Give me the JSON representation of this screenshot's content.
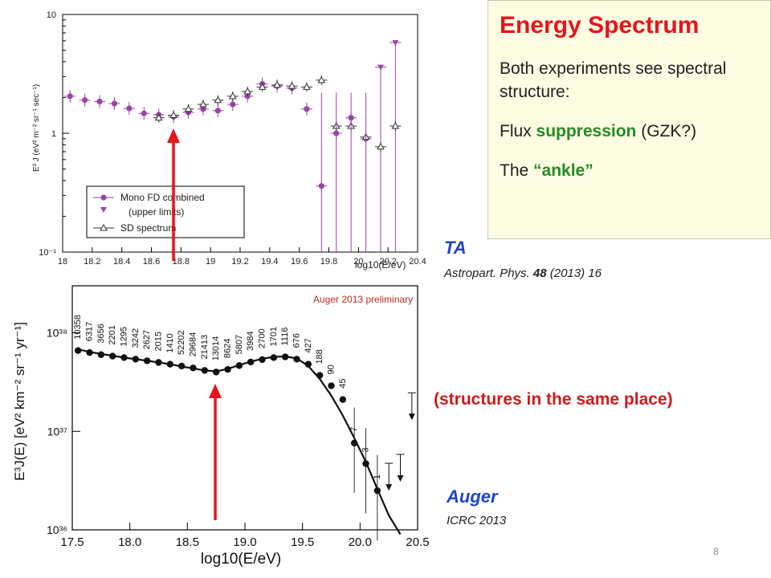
{
  "slide": {
    "box": {
      "title": "Energy Spectrum",
      "line1": "Both experiments see spectral structure:",
      "line2_pre": "Flux ",
      "line2_em": "suppression",
      "line2_post": " (GZK?)",
      "line3_pre": "The ",
      "line3_em": "“ankle”"
    },
    "ta_label": "TA",
    "ta_ref_pre": "Astropart. Phys. ",
    "ta_ref_vol": "48",
    "ta_ref_post": " (2013) 16",
    "same_place": "(structures in the same place)",
    "auger_label": "Auger",
    "auger_ref": "ICRC 2013",
    "page_number": "8",
    "accent_red": "#e8141c",
    "accent_blue": "#2044c4",
    "accent_green": "#238b23"
  },
  "chart_data": [
    {
      "type": "scatter",
      "title": "",
      "xlabel": "log10(E/eV)",
      "ylabel": "E³ J (eV² m⁻² sr⁻¹ sec⁻¹)",
      "xlim": [
        18,
        20.4
      ],
      "ylim": [
        0.1,
        10
      ],
      "yscale": "log",
      "x_ticks": [
        "18",
        "18.2",
        "18.4",
        "18.6",
        "18.8",
        "19",
        "19.2",
        "19.4",
        "19.6",
        "19.8",
        "20",
        "20.2",
        "20.4"
      ],
      "y_ticks": [
        "10⁻¹",
        "1",
        "10"
      ],
      "legend_position": "bottom-left",
      "legend": [
        "Mono FD combined",
        "(upper limits)",
        "SD spectrum"
      ],
      "series": [
        {
          "name": "Mono FD combined",
          "marker": "circle",
          "color": "#9a44a6",
          "x": [
            18.05,
            18.15,
            18.25,
            18.35,
            18.45,
            18.55,
            18.65,
            18.75,
            18.85,
            18.95,
            19.05,
            19.15,
            19.25,
            19.35,
            19.45,
            19.55,
            19.65,
            19.75,
            19.85,
            19.95,
            20.05,
            20.15
          ],
          "y": [
            2.05,
            1.9,
            1.85,
            1.78,
            1.62,
            1.47,
            1.43,
            1.38,
            1.5,
            1.6,
            1.55,
            1.75,
            2.05,
            2.6,
            2.5,
            2.4,
            1.6,
            0.36,
            1.0,
            1.35,
            0.9,
            0.0
          ]
        },
        {
          "name": "(upper limits)",
          "marker": "triangle-down",
          "color": "#9a44a6",
          "x": [
            20.15,
            20.25
          ],
          "y": [
            3.6,
            5.8
          ]
        },
        {
          "name": "SD spectrum",
          "marker": "triangle-open",
          "color": "#303030",
          "x": [
            18.65,
            18.75,
            18.85,
            18.95,
            19.05,
            19.15,
            19.25,
            19.35,
            19.45,
            19.55,
            19.65,
            19.75,
            19.85,
            19.95,
            20.05,
            20.15,
            20.25
          ],
          "y": [
            1.35,
            1.42,
            1.6,
            1.75,
            1.9,
            2.05,
            2.25,
            2.45,
            2.55,
            2.5,
            2.45,
            2.8,
            1.15,
            1.15,
            0.93,
            0.77,
            1.15
          ]
        }
      ]
    },
    {
      "type": "scatter",
      "title": "Auger 2013 preliminary",
      "xlabel": "log10(E/eV)",
      "ylabel": "E³J(E) [eV² km⁻² sr⁻¹ yr⁻¹]",
      "xlim": [
        17.5,
        20.5
      ],
      "ylim": [
        1e+36,
        3e+38
      ],
      "yscale": "log",
      "x_ticks": [
        "17.5",
        "18.0",
        "18.5",
        "19.0",
        "19.5",
        "20.0",
        "20.5"
      ],
      "y_ticks": [
        "10³⁶",
        "10³⁷",
        "10³⁸"
      ],
      "points": {
        "x": [
          17.55,
          17.65,
          17.75,
          17.85,
          17.95,
          18.05,
          18.15,
          18.25,
          18.35,
          18.45,
          18.55,
          18.65,
          18.75,
          18.85,
          18.95,
          19.05,
          19.15,
          19.25,
          19.35,
          19.45,
          19.55,
          19.65,
          19.75,
          19.85,
          19.95,
          20.05,
          20.15
        ],
        "y": [
          6.6e+37,
          6.3e+37,
          6e+37,
          5.8e+37,
          5.6e+37,
          5.4e+37,
          5.2e+37,
          5e+37,
          4.8e+37,
          4.6e+37,
          4.4e+37,
          4.15e+37,
          4e+37,
          4.25e+37,
          4.65e+37,
          5.05e+37,
          5.35e+37,
          5.6e+37,
          5.7e+37,
          5.4e+37,
          4.8e+37,
          3.7e+37,
          2.9e+37,
          2.1e+37,
          7.6e+36,
          4.7e+36,
          2.5e+36
        ]
      },
      "event_counts": [
        "10358",
        "6317",
        "3656",
        "2201",
        "1295",
        "3242",
        "2627",
        "2015",
        "1410",
        "52202",
        "29684",
        "21413",
        "13014",
        "8624",
        "5807",
        "3984",
        "2700",
        "1701",
        "1116",
        "676",
        "427",
        "188",
        "90",
        "45",
        "7",
        "3",
        "1"
      ],
      "upper_limits_x": [
        20.25,
        20.35,
        20.45
      ]
    }
  ]
}
